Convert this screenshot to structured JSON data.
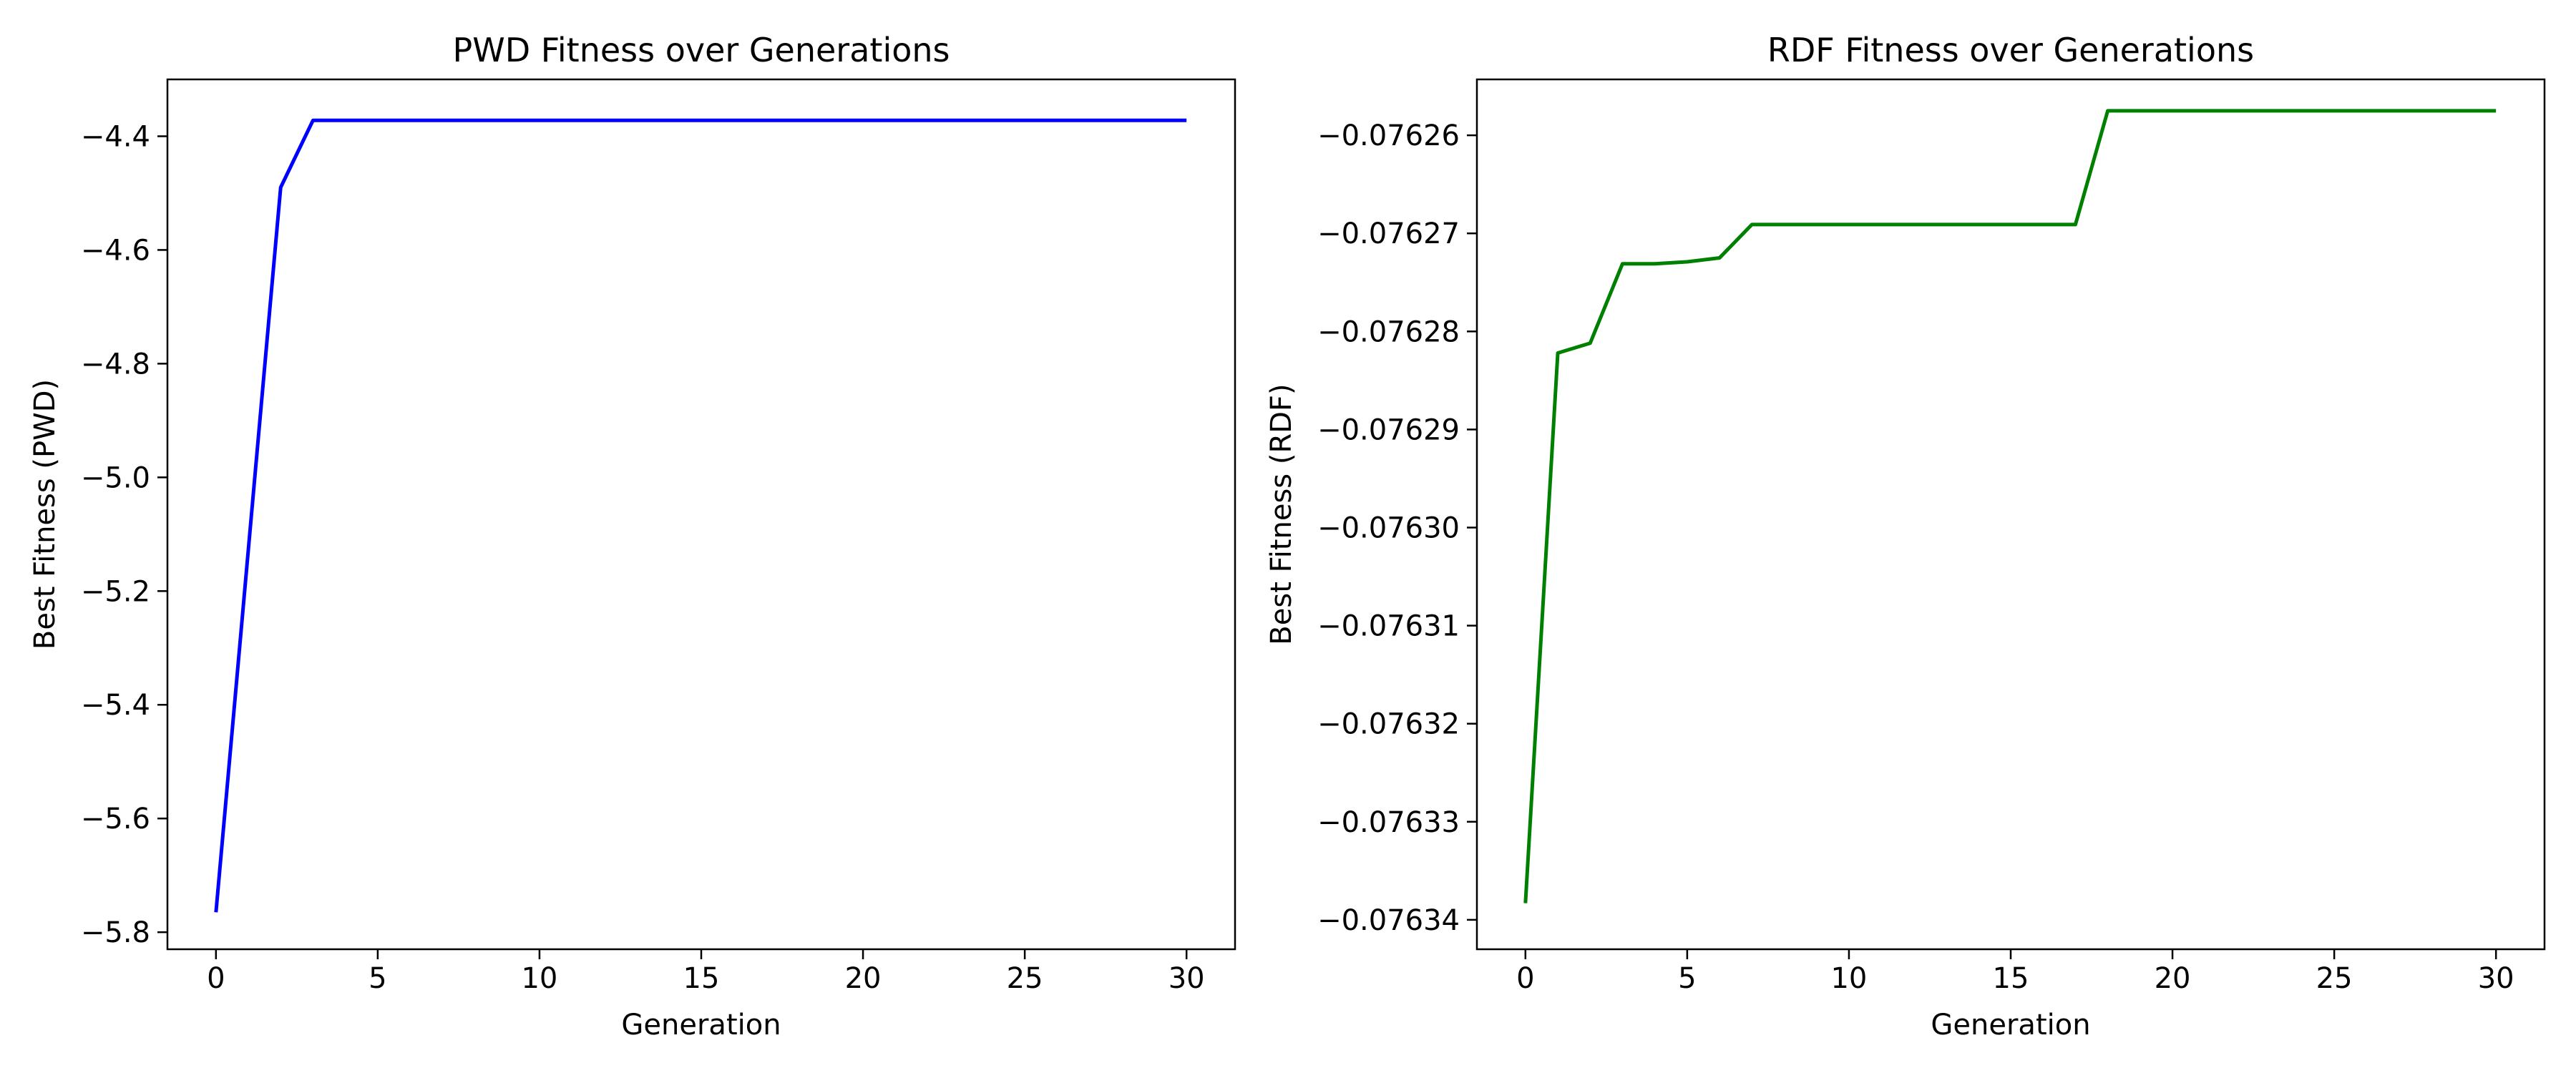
{
  "chart_data": [
    {
      "type": "line",
      "title": "PWD Fitness over Generations",
      "xlabel": "Generation",
      "ylabel": "Best Fitness (PWD)",
      "xlim": [
        -1.5,
        31.5
      ],
      "ylim": [
        -5.83,
        -4.3
      ],
      "xticks": [
        0,
        5,
        10,
        15,
        20,
        25,
        30
      ],
      "xtick_labels": [
        "0",
        "5",
        "10",
        "15",
        "20",
        "25",
        "30"
      ],
      "yticks": [
        -4.4,
        -4.6,
        -4.8,
        -5.0,
        -5.2,
        -5.4,
        -5.6,
        -5.8
      ],
      "ytick_labels": [
        "−4.4",
        "−4.6",
        "−4.8",
        "−5.0",
        "−5.2",
        "−5.4",
        "−5.6",
        "−5.8"
      ],
      "grid": false,
      "series": [
        {
          "color": "#0000ff",
          "x": [
            0,
            2,
            3,
            30
          ],
          "y": [
            -5.765,
            -4.49,
            -4.372,
            -4.372
          ]
        }
      ]
    },
    {
      "type": "line",
      "title": "RDF Fitness over Generations",
      "xlabel": "Generation",
      "ylabel": "Best Fitness (RDF)",
      "xlim": [
        -1.5,
        31.5
      ],
      "ylim": [
        -0.076343,
        -0.0762543
      ],
      "xticks": [
        0,
        5,
        10,
        15,
        20,
        25,
        30
      ],
      "xtick_labels": [
        "0",
        "5",
        "10",
        "15",
        "20",
        "25",
        "30"
      ],
      "yticks": [
        -0.07626,
        -0.07627,
        -0.07628,
        -0.07629,
        -0.0763,
        -0.07631,
        -0.07632,
        -0.07633,
        -0.07634
      ],
      "ytick_labels": [
        "−0.07626",
        "−0.07627",
        "−0.07628",
        "−0.07629",
        "−0.07630",
        "−0.07631",
        "−0.07632",
        "−0.07633",
        "−0.07634"
      ],
      "grid": false,
      "series": [
        {
          "color": "#008000",
          "x": [
            0,
            1,
            2,
            3,
            4,
            5,
            6,
            7,
            8,
            9,
            10,
            11,
            12,
            13,
            14,
            15,
            16,
            17,
            18,
            19,
            20,
            21,
            22,
            23,
            24,
            25,
            26,
            27,
            28,
            29,
            30
          ],
          "y": [
            -0.0763383,
            -0.0762822,
            -0.0762812,
            -0.0762731,
            -0.0762731,
            -0.0762729,
            -0.0762725,
            -0.0762691,
            -0.0762691,
            -0.0762691,
            -0.0762691,
            -0.0762691,
            -0.0762691,
            -0.0762691,
            -0.0762691,
            -0.0762691,
            -0.0762691,
            -0.0762691,
            -0.0762575,
            -0.0762575,
            -0.0762575,
            -0.0762575,
            -0.0762575,
            -0.0762575,
            -0.0762575,
            -0.0762575,
            -0.0762575,
            -0.0762575,
            -0.0762575,
            -0.0762575,
            -0.0762575
          ]
        }
      ]
    }
  ]
}
